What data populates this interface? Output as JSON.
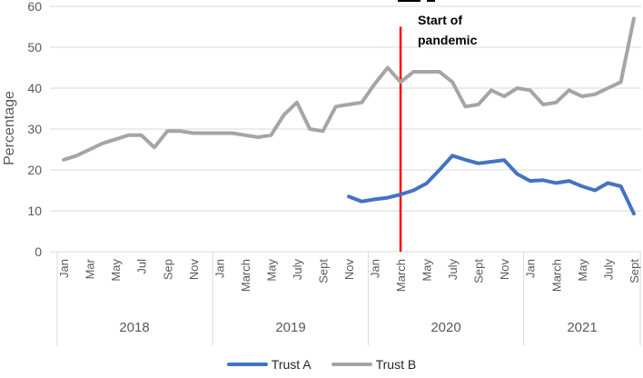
{
  "chart_data": {
    "type": "line",
    "title": "",
    "ylabel": "Percentage",
    "ylim": [
      0,
      60
    ],
    "yticks": [
      0,
      10,
      20,
      30,
      40,
      50,
      60
    ],
    "grid": true,
    "x_month_labels": [
      "Jan",
      "Mar",
      "May",
      "Jul",
      "Sep",
      "Nov",
      "Jan",
      "March",
      "May",
      "July",
      "Sept",
      "Nov",
      "Jan",
      "March",
      "May",
      "July",
      "Sept",
      "Nov",
      "Jan",
      "March",
      "May",
      "July",
      "Sept"
    ],
    "year_labels": [
      "2018",
      "2019",
      "2020",
      "2021"
    ],
    "months_per_year": [
      12,
      12,
      12,
      9
    ],
    "x_range_note": "45 monthly points, Jan 2018 - Sept 2021",
    "series": [
      {
        "name": "Trust B",
        "color": "#A5A5A5",
        "start_index": 0,
        "values": [
          22.5,
          23.5,
          25,
          26.5,
          27.5,
          28.5,
          28.5,
          25.5,
          29.5,
          29.5,
          29,
          29,
          29,
          29,
          28.5,
          28,
          28.5,
          33.5,
          36.5,
          30,
          29.5,
          35.5,
          36,
          36.5,
          41,
          45,
          41.5,
          44,
          44,
          44,
          41.5,
          35.5,
          36,
          39.5,
          38,
          40,
          39.5,
          36,
          36.5,
          39.5,
          38,
          38.5,
          40,
          41.5,
          57
        ]
      },
      {
        "name": "Trust A",
        "color": "#4472C4",
        "start_index": 22,
        "values": [
          13.5,
          12.3,
          12.8,
          13.2,
          14,
          15,
          16.7,
          20,
          23.5,
          22.5,
          21.6,
          22,
          22.4,
          19,
          17.3,
          17.5,
          16.8,
          17.3,
          16,
          15,
          16.8,
          16,
          9.3
        ]
      }
    ],
    "annotation": {
      "line1": "Start of",
      "line2": "pandemic",
      "marker_color": "#FF0000",
      "month_index": 26,
      "marker_top_value": 55,
      "marker_month": "March 2020"
    },
    "legend": [
      {
        "label": "Trust A",
        "color": "#4472C4"
      },
      {
        "label": "Trust B",
        "color": "#A5A5A5"
      }
    ],
    "grid_color": "#D9D9D9",
    "tick_label_color": "#595959",
    "legend_position": "bottom"
  }
}
